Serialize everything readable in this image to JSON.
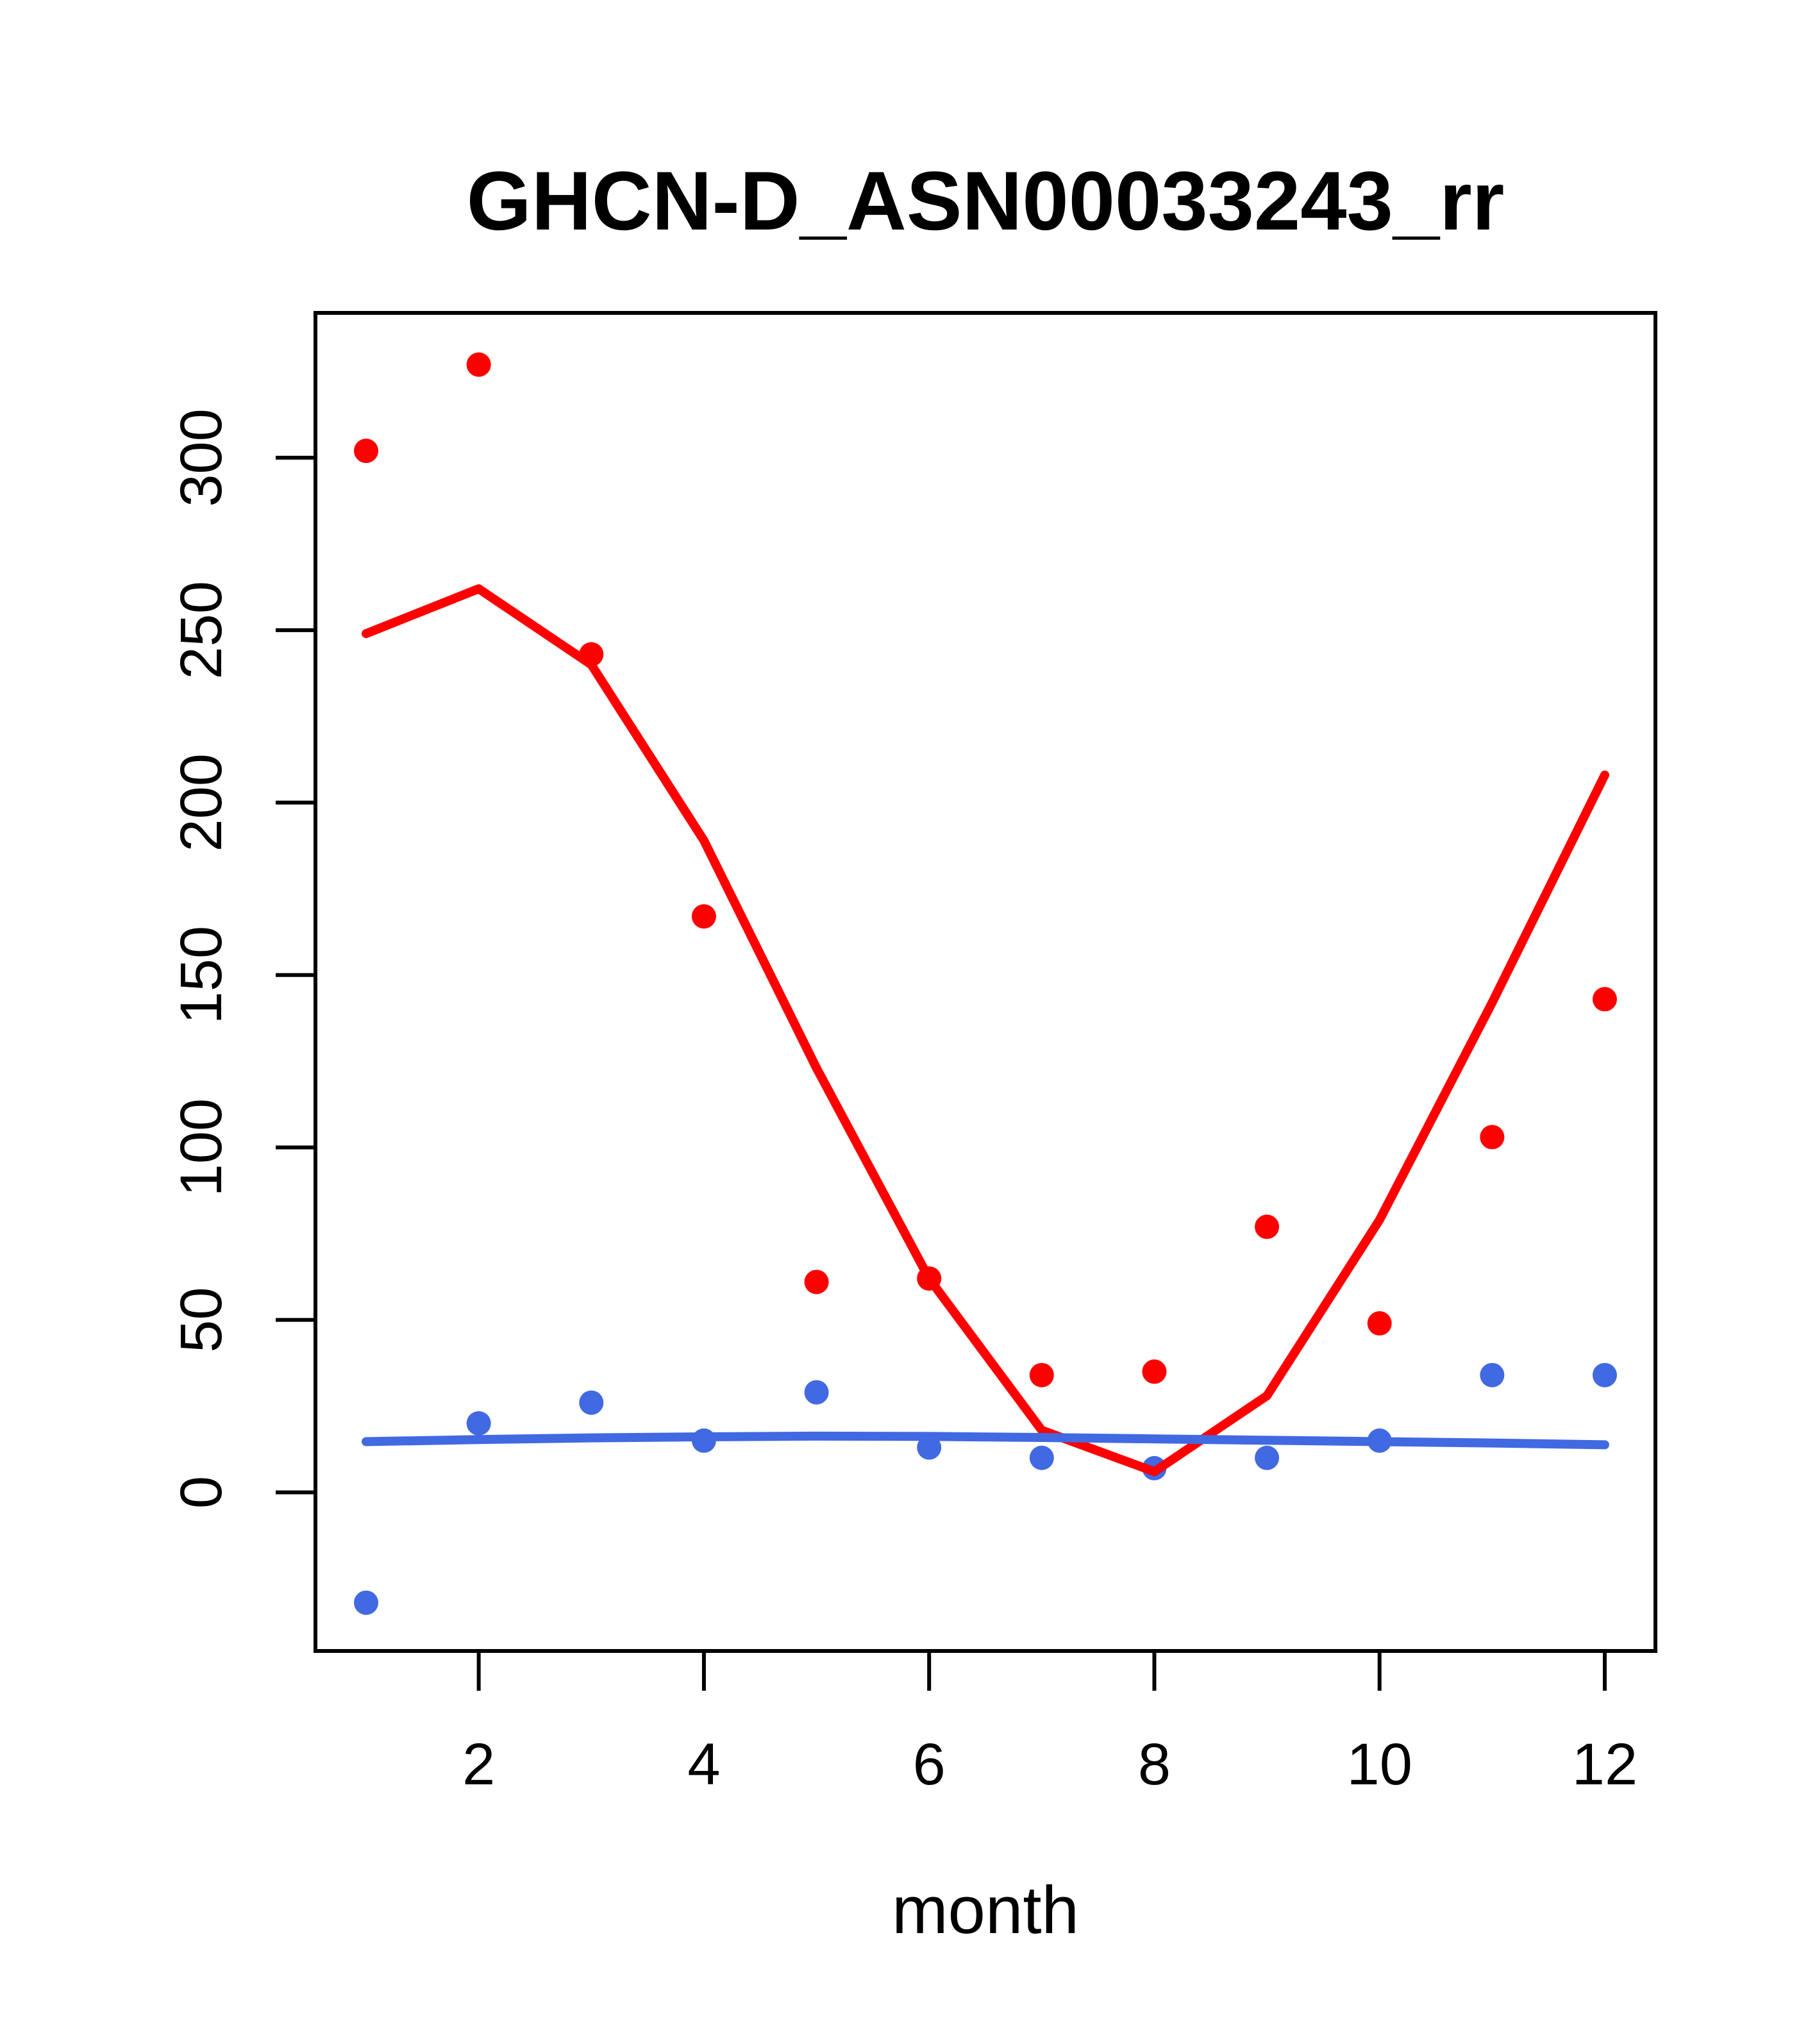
{
  "figure": {
    "title": "GHCN-D_ASN00033243_rr",
    "background_color": "#FFFFFF",
    "frame_color": "#000000",
    "text_color": "#000000"
  },
  "chart_data": {
    "type": "scatter",
    "subtype": "scatter-with-fitted-lines",
    "title": "GHCN-D_ASN00033243_rr",
    "xlabel": "month",
    "ylabel": "",
    "x": [
      1,
      2,
      3,
      4,
      5,
      6,
      7,
      8,
      9,
      10,
      11,
      12
    ],
    "x_ticks": [
      2,
      4,
      6,
      8,
      10,
      12
    ],
    "y_ticks": [
      0,
      50,
      100,
      150,
      200,
      250,
      300
    ],
    "xlim": [
      0.55,
      12.45
    ],
    "ylim": [
      -46,
      342
    ],
    "grid": false,
    "legend_position": "none",
    "series": [
      {
        "name": "red-points",
        "kind": "scatter",
        "color": "#FF0000",
        "values": [
          302,
          327,
          243,
          167,
          61,
          62,
          34,
          35,
          77,
          49,
          103,
          143
        ]
      },
      {
        "name": "red-fitted-line",
        "kind": "line",
        "color": "#FF0000",
        "values": [
          249,
          262,
          240,
          189,
          123,
          62,
          18,
          6,
          28,
          79,
          142,
          208
        ]
      },
      {
        "name": "blue-points",
        "kind": "scatter",
        "color": "#4169E1",
        "values": [
          -32,
          20,
          26,
          15,
          29,
          13,
          10,
          7,
          10,
          15,
          34,
          34
        ]
      },
      {
        "name": "blue-fitted-line",
        "kind": "line",
        "color": "#4169E1",
        "values": [
          14.7,
          15.3,
          15.8,
          16.1,
          16.3,
          16.2,
          15.9,
          15.5,
          15.1,
          14.7,
          14.3,
          13.8
        ]
      }
    ]
  }
}
